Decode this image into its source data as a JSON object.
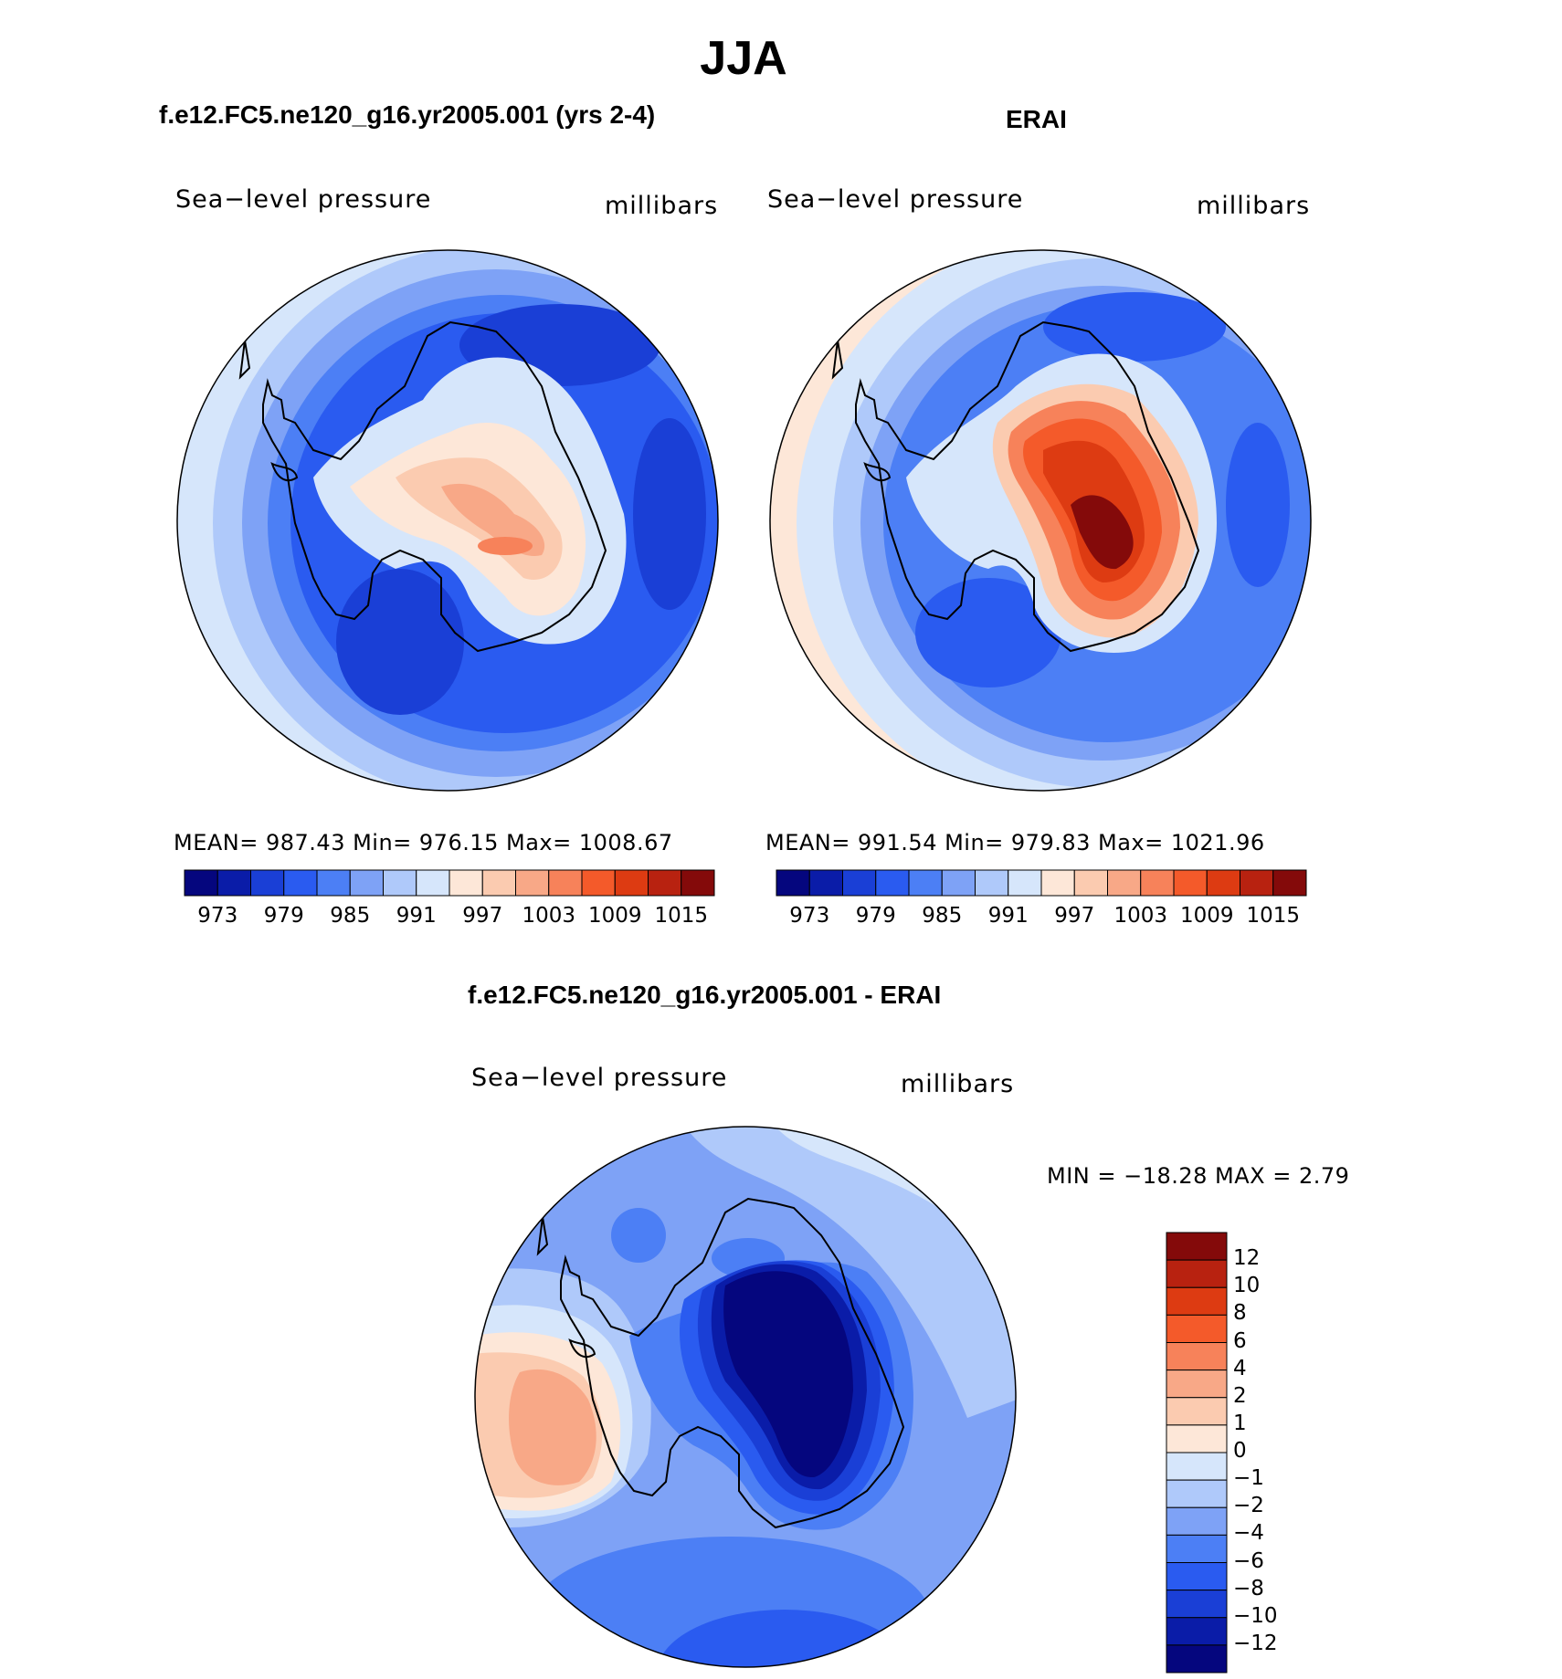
{
  "figure": {
    "title": "JJA"
  },
  "colors": {
    "model_obs_scale": [
      "#05067e",
      "#0a1ca8",
      "#1a3fd6",
      "#2a5bf0",
      "#4c7ff5",
      "#7ea2f6",
      "#afc9fa",
      "#d6e6fb",
      "#fde7d8",
      "#fbcbb0",
      "#f8a887",
      "#f7825a",
      "#f45a2a",
      "#dd3b12",
      "#b82210",
      "#840a0a"
    ],
    "diff_scale": [
      "#05067e",
      "#0a1ca8",
      "#1a3fd6",
      "#2a5bf0",
      "#4c7ff5",
      "#7ea2f6",
      "#afc9fa",
      "#d6e6fb",
      "#fde7d8",
      "#fbcbb0",
      "#f8a887",
      "#f7825a",
      "#f45a2a",
      "#dd3b12",
      "#b82210",
      "#840a0a"
    ]
  },
  "panels": [
    {
      "title": "f.e12.FC5.ne120_g16.yr2005.001 (yrs 2-4)",
      "variable": "Sea−level pressure",
      "units": "millibars",
      "stats_text": "MEAN=  987.43    Min=  976.15    Max=  1008.67",
      "colorbar_ticks": [
        "973",
        "979",
        "985",
        "991",
        "997",
        "1003",
        "1009",
        "1015"
      ]
    },
    {
      "title": "ERAI",
      "variable": "Sea−level pressure",
      "units": "millibars",
      "stats_text": "MEAN=  991.54    Min=  979.83    Max=  1021.96",
      "colorbar_ticks": [
        "973",
        "979",
        "985",
        "991",
        "997",
        "1003",
        "1009",
        "1015"
      ]
    }
  ],
  "diff_panel": {
    "title": "f.e12.FC5.ne120_g16.yr2005.001 - ERAI",
    "variable": "Sea−level pressure",
    "units": "millibars",
    "minmax_text": "MIN  =  −18.28  MAX  =      2.79",
    "colorbar_ticks": [
      "12",
      "10",
      "8",
      "6",
      "4",
      "2",
      "1",
      "0",
      "−1",
      "−2",
      "−4",
      "−6",
      "−8",
      "−10",
      "−12"
    ]
  }
}
